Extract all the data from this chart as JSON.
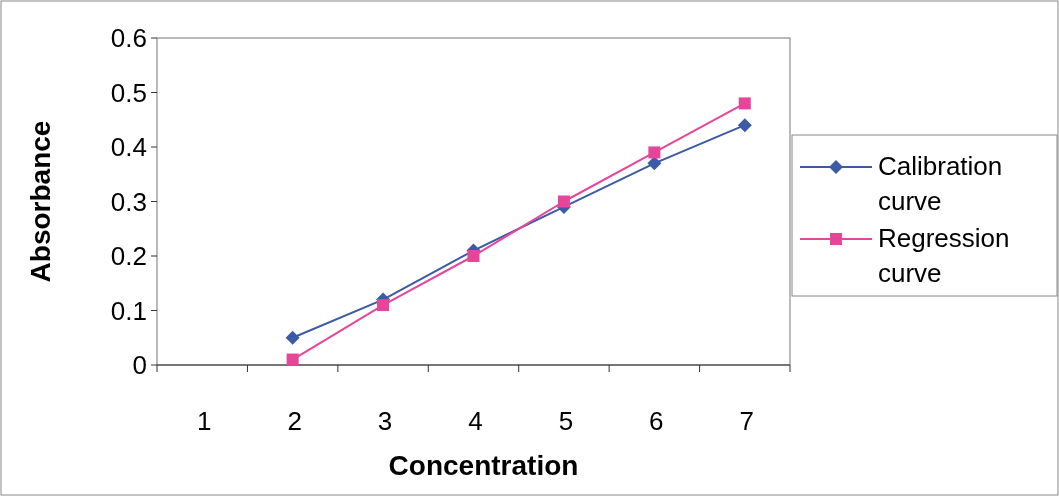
{
  "chart_data": {
    "type": "line",
    "xlabel": "Concentration",
    "ylabel": "Absorbance",
    "categories": [
      "1",
      "2",
      "3",
      "4",
      "5",
      "6",
      "7"
    ],
    "series": [
      {
        "name": "Calibration curve",
        "color": "#3b5ba5",
        "marker": "diamond",
        "values": [
          null,
          0.05,
          0.12,
          0.21,
          0.29,
          0.37,
          0.44
        ]
      },
      {
        "name": "Regression curve",
        "color": "#e6459a",
        "marker": "square",
        "values": [
          null,
          0.01,
          0.11,
          0.2,
          0.3,
          0.39,
          0.48
        ]
      }
    ],
    "ylim": [
      0,
      0.6
    ],
    "yticks": [
      0,
      0.1,
      0.2,
      0.3,
      0.4,
      0.5,
      0.6
    ],
    "grid": false,
    "legend": "right"
  }
}
